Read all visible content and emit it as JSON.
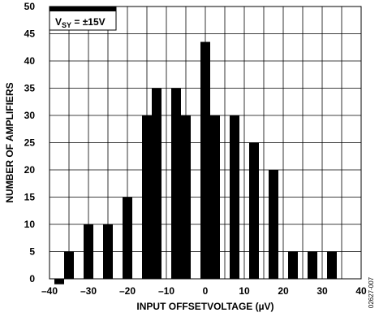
{
  "chart_data": {
    "type": "bar",
    "xlabel": "INPUT OFFSETVOLTAGE (µV)",
    "ylabel": "NUMBER OF AMPLIFIERS",
    "xlim": [
      -40,
      40
    ],
    "ylim": [
      0,
      50
    ],
    "x_ticks": [
      -40,
      -30,
      -20,
      -10,
      0,
      10,
      20,
      30,
      40
    ],
    "y_ticks": [
      0,
      5,
      10,
      15,
      20,
      25,
      30,
      35,
      40,
      45,
      50
    ],
    "x_tick_labels": [
      "–40",
      "–30",
      "–20",
      "–10",
      "0",
      "10",
      "20",
      "30",
      "40"
    ],
    "y_tick_labels": [
      "0",
      "5",
      "10",
      "15",
      "20",
      "25",
      "30",
      "35",
      "40",
      "45",
      "50"
    ],
    "x": [
      -37.5,
      -35,
      -30,
      -25,
      -20,
      -15,
      -12.5,
      -7.5,
      -5,
      0,
      2.5,
      7.5,
      12.5,
      17.5,
      22.5,
      27.5,
      32.5
    ],
    "values": [
      -1,
      5,
      10,
      10,
      15,
      30,
      35,
      35,
      30,
      43.5,
      30,
      30,
      25,
      20,
      5,
      5,
      5
    ],
    "grid": true,
    "annotation": {
      "prefix": "V",
      "subscript": "SY",
      "suffix": " = ±15V"
    },
    "figure_id": "02627-007"
  }
}
